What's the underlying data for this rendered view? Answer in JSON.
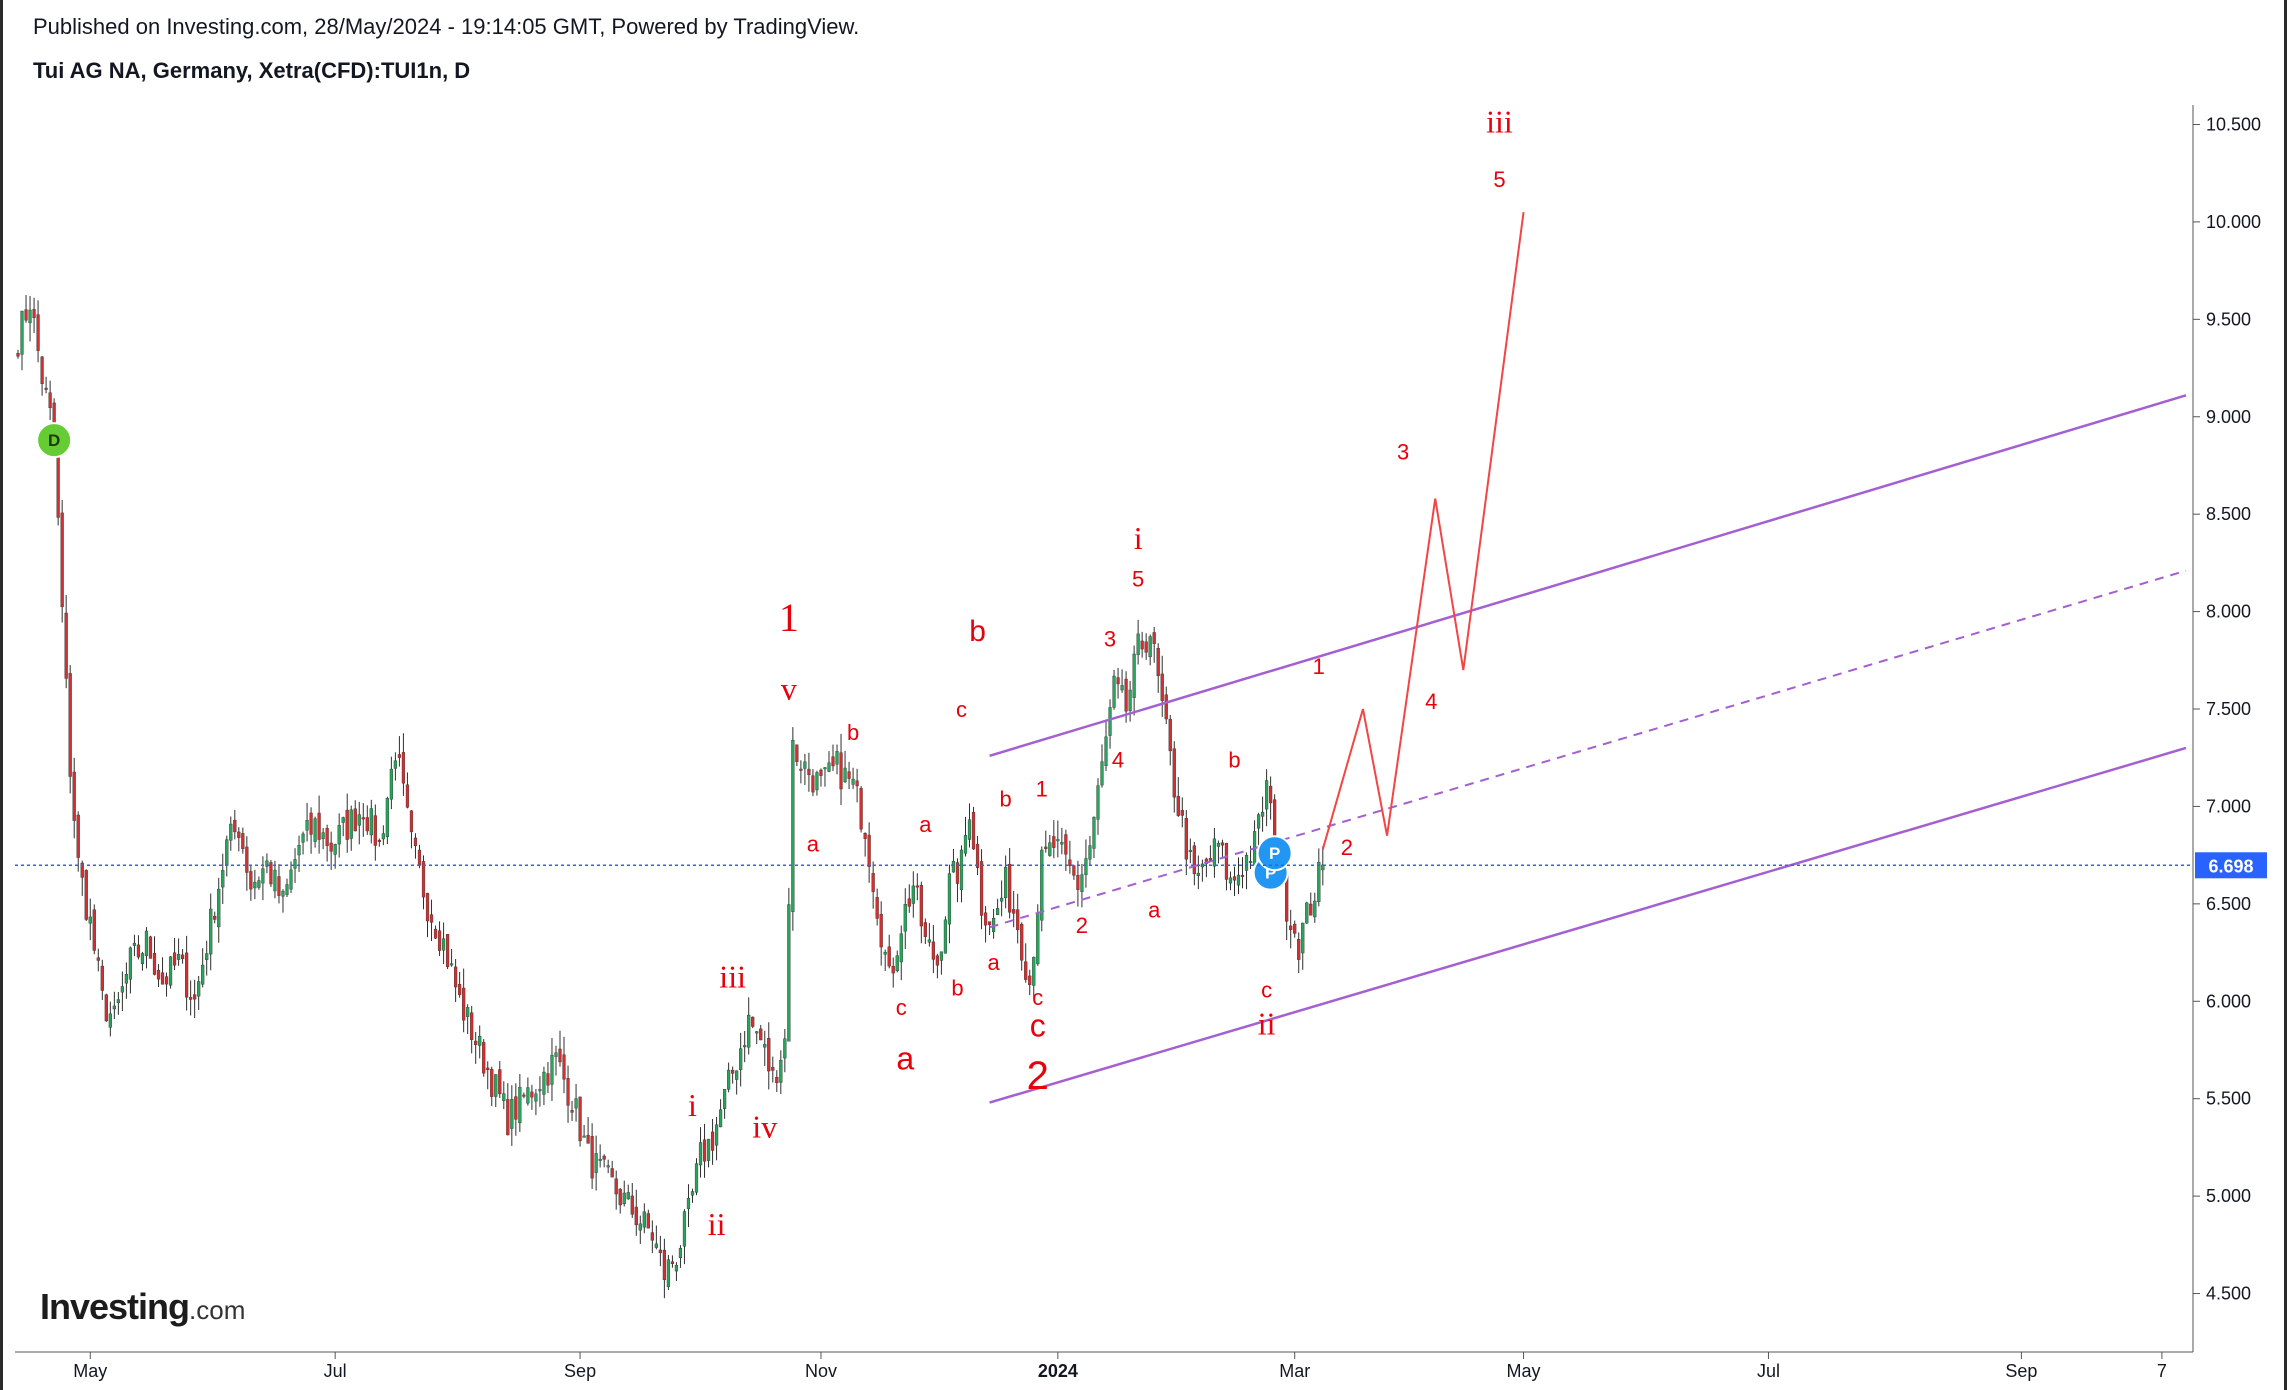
{
  "header": {
    "published": "Published on Investing.com, 28/May/2024 - 19:14:05 GMT, Powered by TradingView.",
    "symbol": "Tui AG NA, Germany, Xetra(CFD):TUI1n, D"
  },
  "logo": {
    "main": "Investing",
    "suffix": ".com"
  },
  "colors": {
    "up_candle": "#26a65b",
    "down_candle": "#d32f2f",
    "wick": "#2f2f2f",
    "channel": "#a45fd1",
    "wave_label": "#e8000b",
    "price_line": "#2962ff",
    "price_badge": "#2962ff"
  },
  "chart_data": {
    "type": "candlestick",
    "ylim": [
      4.2,
      10.6
    ],
    "y_ticks": [
      "10.500",
      "10.000",
      "9.500",
      "9.000",
      "8.500",
      "8.000",
      "7.500",
      "7.000",
      "6.500",
      "6.000",
      "5.500",
      "5.000",
      "4.500"
    ],
    "x_ticks": [
      {
        "label": "May",
        "t": 18
      },
      {
        "label": "Jul",
        "t": 79
      },
      {
        "label": "Sep",
        "t": 140
      },
      {
        "label": "Nov",
        "t": 200
      },
      {
        "label": "2024",
        "t": 259,
        "bold": true
      },
      {
        "label": "Mar",
        "t": 318
      },
      {
        "label": "May",
        "t": 375
      },
      {
        "label": "Jul",
        "t": 436
      },
      {
        "label": "Sep",
        "t": 499
      },
      {
        "label": "7",
        "t": 534
      }
    ],
    "last_price": "6.698",
    "last_price_value": 6.698,
    "price_anchors": [
      [
        0,
        9.4
      ],
      [
        3,
        9.6
      ],
      [
        6,
        9.2
      ],
      [
        9,
        8.9
      ],
      [
        11,
        8.0
      ],
      [
        13,
        7.2
      ],
      [
        15,
        6.7
      ],
      [
        18,
        6.4
      ],
      [
        21,
        6.0
      ],
      [
        24,
        5.9
      ],
      [
        28,
        6.2
      ],
      [
        32,
        6.3
      ],
      [
        36,
        6.1
      ],
      [
        40,
        6.2
      ],
      [
        44,
        6.0
      ],
      [
        48,
        6.4
      ],
      [
        52,
        6.8
      ],
      [
        55,
        6.9
      ],
      [
        58,
        6.6
      ],
      [
        62,
        6.7
      ],
      [
        66,
        6.5
      ],
      [
        70,
        6.8
      ],
      [
        74,
        6.9
      ],
      [
        78,
        6.8
      ],
      [
        82,
        6.9
      ],
      [
        86,
        7.0
      ],
      [
        90,
        6.8
      ],
      [
        94,
        7.3
      ],
      [
        98,
        6.8
      ],
      [
        102,
        6.5
      ],
      [
        106,
        6.3
      ],
      [
        110,
        6.0
      ],
      [
        114,
        5.8
      ],
      [
        118,
        5.6
      ],
      [
        122,
        5.4
      ],
      [
        126,
        5.5
      ],
      [
        130,
        5.6
      ],
      [
        134,
        5.7
      ],
      [
        138,
        5.5
      ],
      [
        142,
        5.2
      ],
      [
        146,
        5.1
      ],
      [
        150,
        5.0
      ],
      [
        154,
        4.9
      ],
      [
        158,
        4.8
      ],
      [
        161,
        4.6
      ],
      [
        164,
        4.7
      ],
      [
        167,
        4.9
      ],
      [
        170,
        5.2
      ],
      [
        173,
        5.3
      ],
      [
        176,
        5.5
      ],
      [
        179,
        5.7
      ],
      [
        182,
        5.9
      ],
      [
        185,
        5.8
      ],
      [
        188,
        5.6
      ],
      [
        191,
        5.8
      ],
      [
        193,
        7.3
      ],
      [
        196,
        7.2
      ],
      [
        200,
        7.1
      ],
      [
        204,
        7.2
      ],
      [
        208,
        7.1
      ],
      [
        211,
        6.9
      ],
      [
        214,
        6.5
      ],
      [
        217,
        6.1
      ],
      [
        220,
        6.4
      ],
      [
        223,
        6.6
      ],
      [
        226,
        6.3
      ],
      [
        229,
        6.2
      ],
      [
        232,
        6.6
      ],
      [
        235,
        6.7
      ],
      [
        237,
        7.0
      ],
      [
        240,
        6.5
      ],
      [
        243,
        6.4
      ],
      [
        246,
        6.6
      ],
      [
        249,
        6.4
      ],
      [
        252,
        6.1
      ],
      [
        255,
        6.7
      ],
      [
        258,
        6.8
      ],
      [
        261,
        6.7
      ],
      [
        264,
        6.6
      ],
      [
        267,
        6.8
      ],
      [
        270,
        7.2
      ],
      [
        273,
        7.6
      ],
      [
        276,
        7.5
      ],
      [
        279,
        7.8
      ],
      [
        282,
        7.9
      ],
      [
        285,
        7.5
      ],
      [
        288,
        7.1
      ],
      [
        290,
        6.9
      ],
      [
        293,
        6.6
      ],
      [
        296,
        6.7
      ],
      [
        299,
        6.8
      ],
      [
        302,
        6.6
      ],
      [
        305,
        6.7
      ],
      [
        308,
        6.8
      ],
      [
        311,
        7.1
      ],
      [
        313,
        6.8
      ],
      [
        316,
        6.5
      ],
      [
        319,
        6.3
      ],
      [
        322,
        6.5
      ],
      [
        325,
        6.7
      ]
    ],
    "channel": {
      "upper": [
        [
          242,
          7.26
        ],
        [
          540,
          9.11
        ]
      ],
      "middle": [
        [
          242,
          6.38
        ],
        [
          540,
          8.21
        ]
      ],
      "lower": [
        [
          242,
          5.48
        ],
        [
          540,
          7.3
        ]
      ]
    },
    "projection": [
      [
        325,
        6.78
      ],
      [
        335,
        7.5
      ],
      [
        341,
        6.85
      ],
      [
        353,
        8.58
      ],
      [
        360,
        7.7
      ],
      [
        375,
        10.05
      ]
    ],
    "wave_labels": [
      {
        "text": "1",
        "t": 192,
        "y": 7.9,
        "size": 40,
        "font": "serif"
      },
      {
        "text": "v",
        "t": 192,
        "y": 7.55,
        "size": 32,
        "font": "serif"
      },
      {
        "text": "b",
        "t": 239,
        "y": 7.85,
        "size": 30,
        "font": "sans"
      },
      {
        "text": "b",
        "t": 208,
        "y": 7.34,
        "size": 22,
        "font": "sans"
      },
      {
        "text": "a",
        "t": 198,
        "y": 6.77,
        "size": 22,
        "font": "sans"
      },
      {
        "text": "c",
        "t": 235,
        "y": 7.46,
        "size": 22,
        "font": "sans"
      },
      {
        "text": "a",
        "t": 226,
        "y": 6.87,
        "size": 22,
        "font": "sans"
      },
      {
        "text": "b",
        "t": 246,
        "y": 7.0,
        "size": 22,
        "font": "sans"
      },
      {
        "text": "1",
        "t": 255,
        "y": 7.05,
        "size": 22,
        "font": "sans"
      },
      {
        "text": "c",
        "t": 220,
        "y": 5.93,
        "size": 22,
        "font": "sans"
      },
      {
        "text": "b",
        "t": 234,
        "y": 6.03,
        "size": 22,
        "font": "sans"
      },
      {
        "text": "a",
        "t": 243,
        "y": 6.16,
        "size": 22,
        "font": "sans"
      },
      {
        "text": "a",
        "t": 221,
        "y": 5.65,
        "size": 32,
        "font": "sans"
      },
      {
        "text": "c",
        "t": 254,
        "y": 5.98,
        "size": 22,
        "font": "sans"
      },
      {
        "text": "c",
        "t": 254,
        "y": 5.82,
        "size": 32,
        "font": "sans"
      },
      {
        "text": "2",
        "t": 254,
        "y": 5.55,
        "size": 40,
        "font": "sans"
      },
      {
        "text": "2",
        "t": 265,
        "y": 6.35,
        "size": 22,
        "font": "sans"
      },
      {
        "text": "3",
        "t": 272,
        "y": 7.82,
        "size": 22,
        "font": "sans"
      },
      {
        "text": "4",
        "t": 274,
        "y": 7.2,
        "size": 22,
        "font": "sans"
      },
      {
        "text": "5",
        "t": 279,
        "y": 8.13,
        "size": 22,
        "font": "sans"
      },
      {
        "text": "i",
        "t": 279,
        "y": 8.32,
        "size": 32,
        "font": "serif"
      },
      {
        "text": "b",
        "t": 303,
        "y": 7.2,
        "size": 22,
        "font": "sans"
      },
      {
        "text": "a",
        "t": 283,
        "y": 6.43,
        "size": 22,
        "font": "sans"
      },
      {
        "text": "c",
        "t": 311,
        "y": 6.02,
        "size": 22,
        "font": "sans"
      },
      {
        "text": "ii",
        "t": 311,
        "y": 5.83,
        "size": 32,
        "font": "serif"
      },
      {
        "text": "iii",
        "t": 178,
        "y": 6.07,
        "size": 32,
        "font": "serif"
      },
      {
        "text": "i",
        "t": 168,
        "y": 5.41,
        "size": 32,
        "font": "serif"
      },
      {
        "text": "ii",
        "t": 174,
        "y": 4.8,
        "size": 32,
        "font": "serif"
      },
      {
        "text": "iv",
        "t": 186,
        "y": 5.3,
        "size": 32,
        "font": "serif"
      },
      {
        "text": "1",
        "t": 324,
        "y": 7.68,
        "size": 22,
        "font": "sans"
      },
      {
        "text": "2",
        "t": 331,
        "y": 6.75,
        "size": 22,
        "font": "sans"
      },
      {
        "text": "3",
        "t": 345,
        "y": 8.78,
        "size": 22,
        "font": "sans"
      },
      {
        "text": "4",
        "t": 352,
        "y": 7.5,
        "size": 22,
        "font": "sans"
      },
      {
        "text": "5",
        "t": 369,
        "y": 10.18,
        "size": 22,
        "font": "sans"
      },
      {
        "text": "iii",
        "t": 369,
        "y": 10.46,
        "size": 32,
        "font": "serif"
      }
    ],
    "badges": [
      {
        "text": "D",
        "t": 9,
        "y": 8.88,
        "color": "#66cc33"
      },
      {
        "text": "P",
        "t": 312,
        "y": 6.66,
        "color": "#2196f3"
      },
      {
        "text": "P",
        "t": 313,
        "y": 6.76,
        "color": "#2196f3"
      }
    ]
  }
}
